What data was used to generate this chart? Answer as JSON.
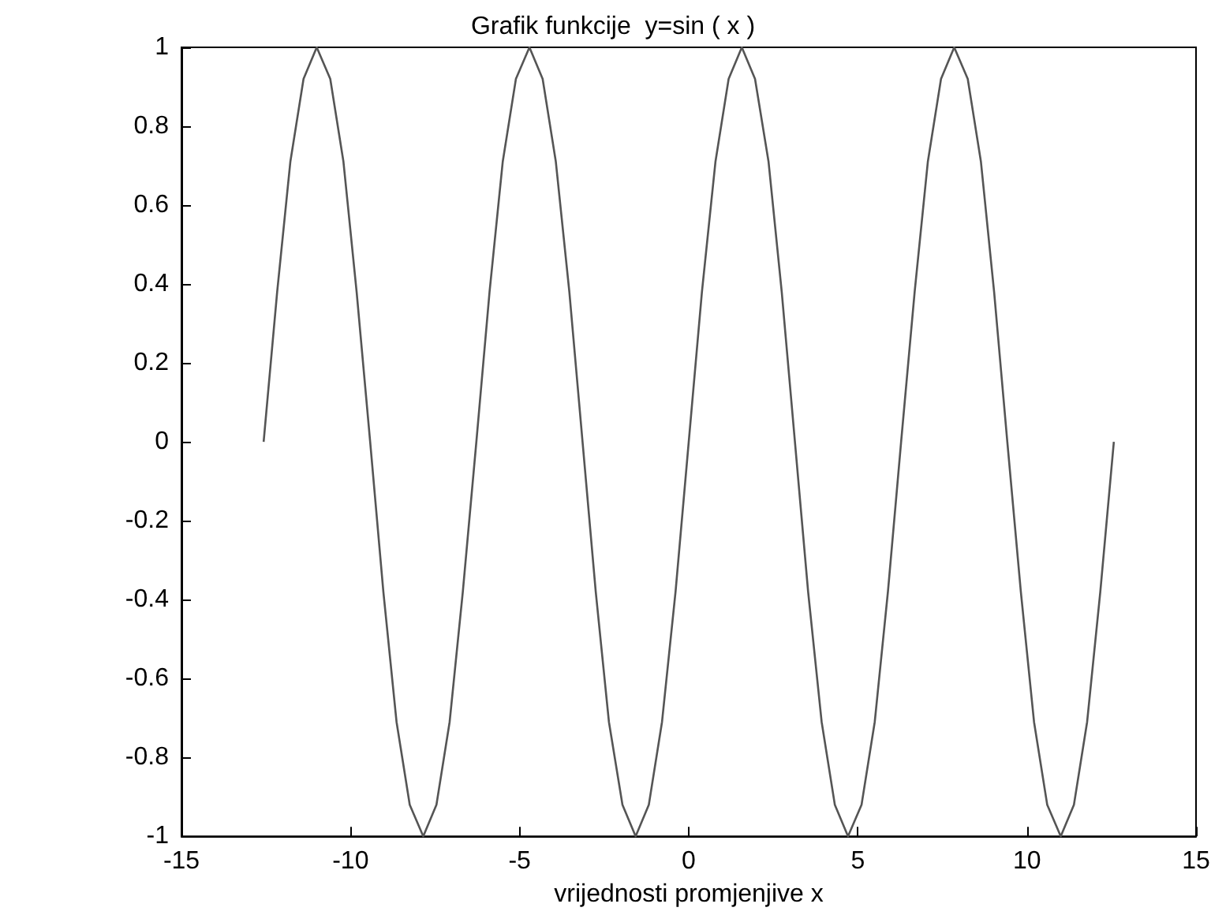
{
  "chart_data": {
    "type": "line",
    "title": "Grafik funkcije  y=sin ( x )",
    "xlabel": "vrijednosti promjenjive x",
    "xlim": [
      -15,
      15
    ],
    "xticks": [
      -15,
      -10,
      -5,
      0,
      5,
      10,
      15
    ],
    "ylim": [
      -1,
      1
    ],
    "yticks": [
      -1,
      -0.8,
      -0.6,
      -0.4,
      -0.2,
      0,
      0.2,
      0.4,
      0.6,
      0.8,
      1
    ],
    "series": [
      {
        "color": "#555555",
        "x": [
          -12.57,
          -12.17,
          -11.78,
          -11.39,
          -11.0,
          -10.6,
          -10.21,
          -9.82,
          -9.42,
          -9.03,
          -8.64,
          -8.25,
          -7.85,
          -7.46,
          -7.07,
          -6.68,
          -6.28,
          -5.89,
          -5.5,
          -5.11,
          -4.71,
          -4.32,
          -3.93,
          -3.53,
          -3.14,
          -2.75,
          -2.36,
          -1.96,
          -1.57,
          -1.18,
          -0.79,
          -0.39,
          0,
          0.39,
          0.79,
          1.18,
          1.57,
          1.96,
          2.36,
          2.75,
          3.14,
          3.53,
          3.93,
          4.32,
          4.71,
          5.11,
          5.5,
          5.89,
          6.28,
          6.68,
          7.07,
          7.46,
          7.85,
          8.25,
          8.64,
          9.03,
          9.42,
          9.82,
          10.21,
          10.6,
          11.0,
          11.39,
          11.78,
          12.17,
          12.57
        ],
        "values": [
          0,
          0.38,
          0.71,
          0.92,
          1,
          0.92,
          0.71,
          0.38,
          0,
          -0.38,
          -0.71,
          -0.92,
          -1,
          -0.92,
          -0.71,
          -0.38,
          0,
          0.38,
          0.71,
          0.92,
          1,
          0.92,
          0.71,
          0.38,
          0,
          -0.38,
          -0.71,
          -0.92,
          -1,
          -0.92,
          -0.71,
          -0.38,
          0,
          0.38,
          0.71,
          0.92,
          1,
          0.92,
          0.71,
          0.38,
          0,
          -0.38,
          -0.71,
          -0.92,
          -1,
          -0.92,
          -0.71,
          -0.38,
          0,
          0.38,
          0.71,
          0.92,
          1,
          0.92,
          0.71,
          0.38,
          0,
          -0.38,
          -0.71,
          -0.92,
          -1,
          -0.92,
          -0.71,
          -0.38,
          0
        ]
      }
    ]
  }
}
